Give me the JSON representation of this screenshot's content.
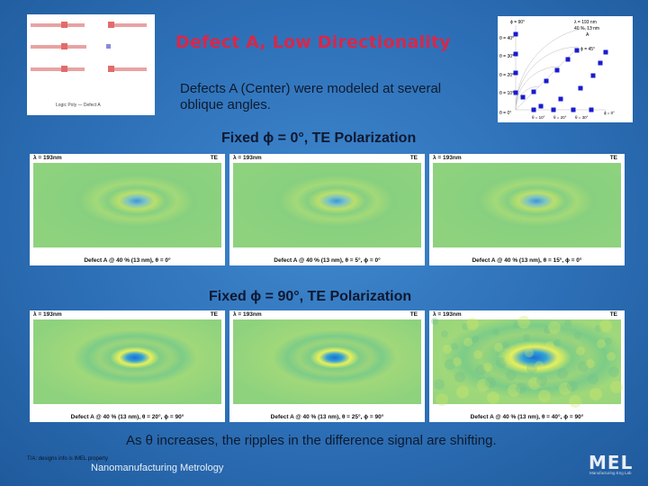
{
  "slide": {
    "title": "Defect A, Low Directionality",
    "subtitle": "Defects A (Center) were modeled at several oblique angles.",
    "schematic_caption": "Logic Poly — Defect A",
    "row1_title": "Fixed ϕ = 0°, TE Polarization",
    "row2_title": "Fixed ϕ = 90°, TE Polarization",
    "caption": "As θ  increases, the ripples in the difference signal are shifting.",
    "footnote": "T/A: designs info is IMEL property",
    "footer": "Nanomanufacturing Metrology",
    "logo_text": "MEL",
    "logo_sub": "Manufacturing Eng Lab"
  },
  "polar_plot": {
    "phi_top": "ϕ = 90°",
    "phi_mid": "ϕ = 45°",
    "legend_lines": [
      "λ = 193 nm",
      "40 %, 13 nm",
      "A"
    ],
    "theta_labels": [
      "θ = 40°",
      "θ = 30°",
      "θ = 20°",
      "θ = 10°",
      "θ = 0°"
    ],
    "bottom_labels": [
      "θ = 10°",
      "θ = 20°",
      "θ = 30°",
      "ϕ = 0°"
    ]
  },
  "panels": [
    {
      "lambda": "λ = 193nm",
      "mode": "TE",
      "caption": "Defect A @ 40 % (13 nm), θ = 0°"
    },
    {
      "lambda": "λ = 193nm",
      "mode": "TE",
      "caption": "Defect A @ 40 % (13 nm), θ = 5°, ϕ = 0°"
    },
    {
      "lambda": "λ = 193nm",
      "mode": "TE",
      "caption": "Defect A @ 40 % (13 nm), θ = 15°, ϕ = 0°"
    },
    {
      "lambda": "λ = 193nm",
      "mode": "TE",
      "caption": "Defect A @ 40 % (13 nm), θ = 20°, ϕ = 90°"
    },
    {
      "lambda": "λ = 193nm",
      "mode": "TE",
      "caption": "Defect A @ 40 % (13 nm), θ = 25°, ϕ = 90°"
    },
    {
      "lambda": "λ = 193nm",
      "mode": "TE",
      "caption": "Defect A @ 40 % (13 nm), θ = 40°, ϕ = 90°"
    }
  ],
  "colors": {
    "title": "#d6284b",
    "field_base": "#8ed27e",
    "ring_dark": "#2a8fd0",
    "ring_light": "#c6e45a",
    "marker": "#1a1ad0"
  }
}
